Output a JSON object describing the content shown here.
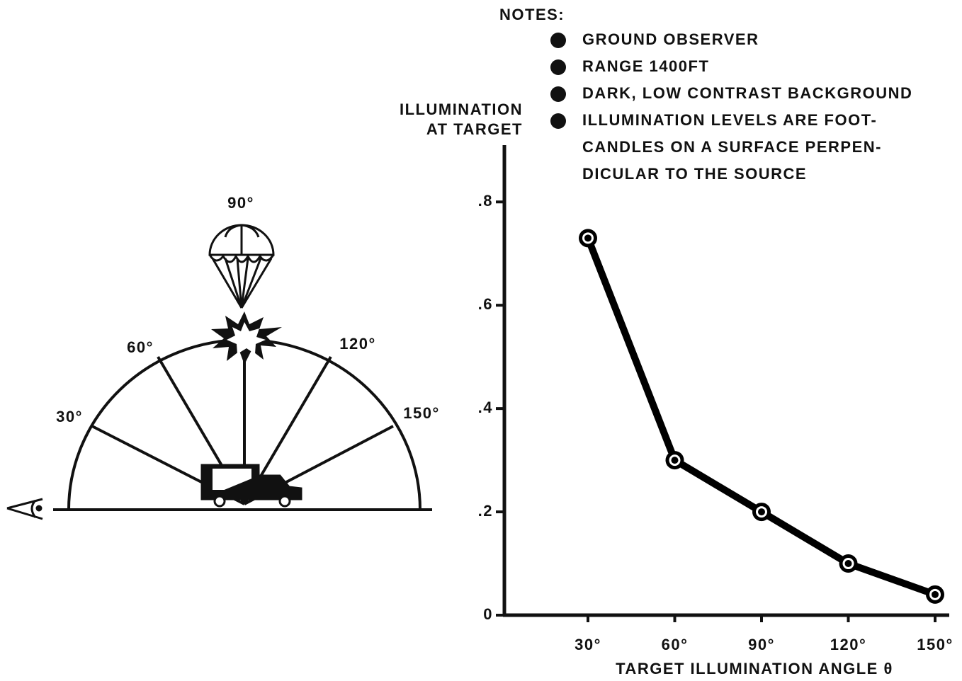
{
  "chart_data": {
    "type": "line",
    "y_label": [
      "ILLUMINATION",
      "AT TARGET"
    ],
    "x_label": "TARGET ILLUMINATION ANGLE θ",
    "categories": [
      "30°",
      "60°",
      "90°",
      "120°",
      "150°"
    ],
    "values": [
      0.73,
      0.3,
      0.2,
      0.1,
      0.04
    ],
    "color": "#000000",
    "ylim": [
      0,
      0.91
    ],
    "yticks": [
      0,
      {
        "value": 0.2,
        "label": ".2"
      },
      {
        "value": 0.4,
        "label": ".4"
      },
      {
        "value": 0.6,
        "label": ".6"
      },
      {
        "value": 0.8,
        "label": ".8"
      }
    ],
    "grid": false
  },
  "notes": {
    "title": "NOTES:",
    "items": [
      [
        "GROUND OBSERVER"
      ],
      [
        "RANGE 1400FT"
      ],
      [
        "DARK, LOW CONTRAST BACKGROUND"
      ],
      [
        "ILLUMINATION LEVELS ARE FOOT-",
        "CANDLES ON A SURFACE PERPEN-",
        "DICULAR TO THE SOURCE"
      ]
    ]
  },
  "diagram": {
    "angle_labels": [
      "30°",
      "60°",
      "90°",
      "120°",
      "150°"
    ]
  }
}
